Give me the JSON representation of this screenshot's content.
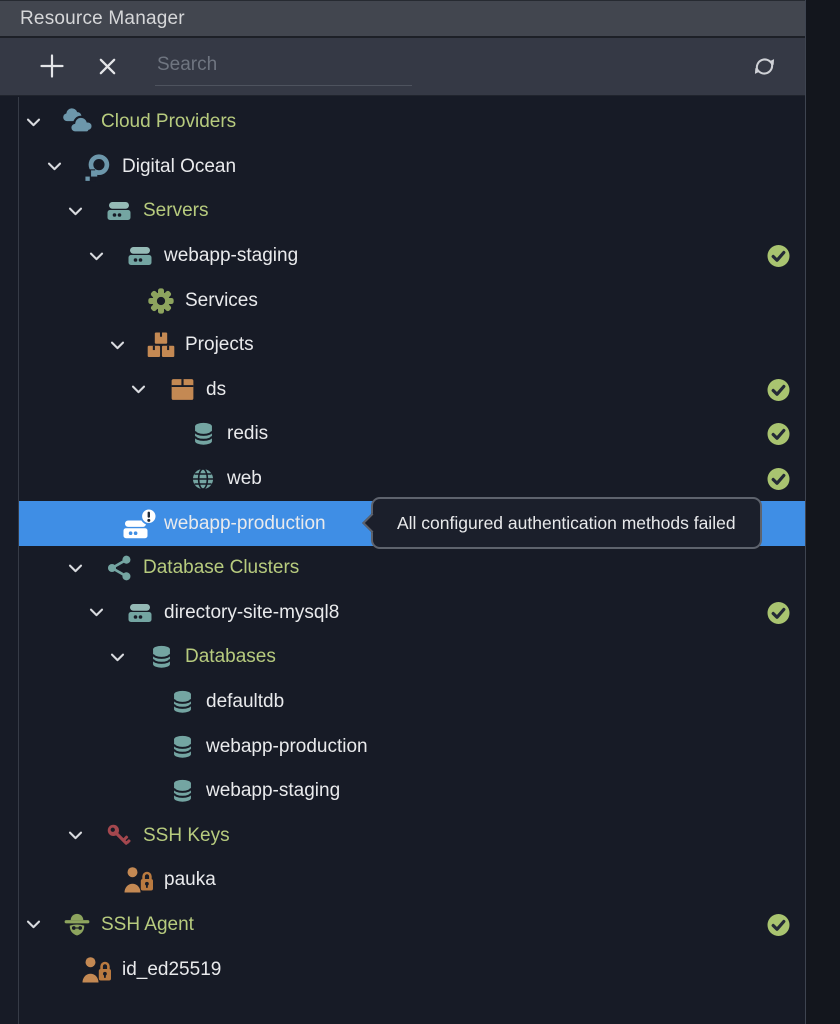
{
  "panel": {
    "title": "Resource Manager"
  },
  "toolbar": {
    "search_placeholder": "Search",
    "icons": [
      "plus-icon",
      "close-icon",
      "refresh-icon"
    ]
  },
  "tooltip": {
    "text": "All configured authentication methods failed"
  },
  "colors": {
    "panel_bg": "#171b26",
    "titlebar_bg": "#42464f",
    "toolbar_bg": "#353945",
    "right_gutter_bg": "#13161d",
    "selection_blue": "#3f8ee5",
    "label_green": "#b7cb7e",
    "label_white": "#e9eaec",
    "check_green": "#a9c470",
    "icon_teal": "#74a5a2",
    "icon_teal_light": "#95bab6",
    "icon_steel_blue": "#6d97ab",
    "icon_olive": "#8da45e",
    "icon_orange": "#c48953",
    "icon_orange_dark": "#b97a40",
    "icon_red": "#a4474e",
    "icon_white": "#ffffff",
    "tooltip_border": "#5e636d",
    "tooltip_bg": "#1b1f2b"
  },
  "tree": {
    "rows": [
      {
        "label": "Cloud Providers",
        "level": 0,
        "icon": "clouds",
        "label_color": "green",
        "chevron": true,
        "check": false,
        "selected": false
      },
      {
        "label": "Digital Ocean",
        "level": 1,
        "icon": "digitalocean",
        "label_color": "white",
        "chevron": true,
        "check": false,
        "selected": false
      },
      {
        "label": "Servers",
        "level": 2,
        "icon": "server",
        "label_color": "green",
        "chevron": true,
        "check": false,
        "selected": false
      },
      {
        "label": "webapp-staging",
        "level": 3,
        "icon": "server",
        "label_color": "white",
        "chevron": true,
        "check": true,
        "selected": false
      },
      {
        "label": "Services",
        "level": 4,
        "icon": "gear",
        "label_color": "white",
        "chevron": false,
        "check": false,
        "selected": false
      },
      {
        "label": "Projects",
        "level": 4,
        "icon": "boxes",
        "label_color": "white",
        "chevron": true,
        "check": false,
        "selected": false
      },
      {
        "label": "ds",
        "level": 5,
        "icon": "box",
        "label_color": "white",
        "chevron": true,
        "check": true,
        "selected": false
      },
      {
        "label": "redis",
        "level": 6,
        "icon": "database",
        "label_color": "white",
        "chevron": false,
        "check": true,
        "selected": false
      },
      {
        "label": "web",
        "level": 6,
        "icon": "globe",
        "label_color": "white",
        "chevron": false,
        "check": true,
        "selected": false
      },
      {
        "label": "webapp-production",
        "level": 3,
        "icon": "server-alert",
        "label_color": "white",
        "chevron": false,
        "check": false,
        "selected": true
      },
      {
        "label": "Database Clusters",
        "level": 2,
        "icon": "share",
        "label_color": "green",
        "chevron": true,
        "check": false,
        "selected": false
      },
      {
        "label": "directory-site-mysql8",
        "level": 3,
        "icon": "server",
        "label_color": "white",
        "chevron": true,
        "check": true,
        "selected": false
      },
      {
        "label": "Databases",
        "level": 4,
        "icon": "database",
        "label_color": "green",
        "chevron": true,
        "check": false,
        "selected": false
      },
      {
        "label": "defaultdb",
        "level": 5,
        "icon": "database",
        "label_color": "white",
        "chevron": false,
        "check": false,
        "selected": false
      },
      {
        "label": "webapp-production",
        "level": 5,
        "icon": "database",
        "label_color": "white",
        "chevron": false,
        "check": false,
        "selected": false
      },
      {
        "label": "webapp-staging",
        "level": 5,
        "icon": "database",
        "label_color": "white",
        "chevron": false,
        "check": false,
        "selected": false
      },
      {
        "label": "SSH Keys",
        "level": 2,
        "icon": "key",
        "label_color": "green",
        "chevron": true,
        "check": false,
        "selected": false
      },
      {
        "label": "pauka",
        "level": 3,
        "icon": "person-lock",
        "label_color": "white",
        "chevron": false,
        "check": false,
        "selected": false
      },
      {
        "label": "SSH Agent",
        "level": 0,
        "icon": "spy",
        "label_color": "green",
        "chevron": true,
        "check": true,
        "selected": false
      },
      {
        "label": "id_ed25519",
        "level": 1,
        "icon": "person-lock",
        "label_color": "white",
        "chevron": false,
        "check": false,
        "selected": false
      }
    ]
  }
}
